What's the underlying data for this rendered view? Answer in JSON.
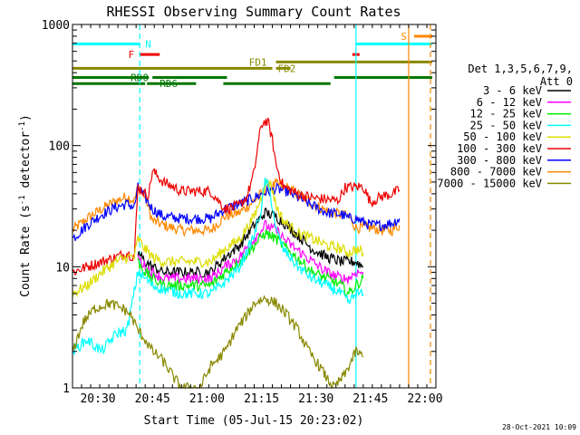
{
  "chart_data": {
    "type": "line",
    "title": "RHESSI Observing Summary Count Rates",
    "xlabel": "Start Time (05-Jul-15 20:23:02)",
    "ylabel_main": "Count Rate (s",
    "ylabel_sup": "-1",
    "ylabel_tail": " detector",
    "ylabel_end": ")",
    "timestamp": "28-Oct-2021 10:09",
    "y_scale": "log",
    "ylim": [
      1,
      1000
    ],
    "xlim_minutes": [
      0,
      100
    ],
    "x_ticks": [
      {
        "t": 7,
        "label": "20:30"
      },
      {
        "t": 22,
        "label": "20:45"
      },
      {
        "t": 37,
        "label": "21:00"
      },
      {
        "t": 52,
        "label": "21:15"
      },
      {
        "t": 67,
        "label": "21:30"
      },
      {
        "t": 82,
        "label": "21:45"
      },
      {
        "t": 97,
        "label": "22:00"
      }
    ],
    "y_ticks": [
      {
        "v": 1,
        "label": "1"
      },
      {
        "v": 10,
        "label": "10"
      },
      {
        "v": 100,
        "label": "100"
      },
      {
        "v": 1000,
        "label": "1000"
      }
    ],
    "legend": {
      "header": [
        "Det 1,3,5,6,7,9,",
        "Att 0"
      ],
      "entries": [
        {
          "label": "3 - 6 keV",
          "color": "#000000"
        },
        {
          "label": "6 - 12 keV",
          "color": "#ff00ff"
        },
        {
          "label": "12 - 25 keV",
          "color": "#00ee00"
        },
        {
          "label": "25 - 50 keV",
          "color": "#00ffff"
        },
        {
          "label": "50 - 100 keV",
          "color": "#dddd00"
        },
        {
          "label": "100 - 300 keV",
          "color": "#ee0000"
        },
        {
          "label": "300 - 800 keV",
          "color": "#0000ff"
        },
        {
          "label": "800 - 7000 keV",
          "color": "#ff8800"
        },
        {
          "label": "7000 - 15000 keV",
          "color": "#888800"
        }
      ]
    },
    "series": [
      {
        "color": "#ff8800",
        "points": [
          [
            0,
            20
          ],
          [
            4,
            25
          ],
          [
            8,
            30
          ],
          [
            12,
            35
          ],
          [
            15,
            38
          ],
          [
            17,
            35
          ],
          [
            18,
            45
          ],
          [
            20,
            38
          ],
          [
            21,
            30
          ],
          [
            22,
            24
          ],
          [
            25,
            22
          ],
          [
            30,
            20
          ],
          [
            35,
            20
          ],
          [
            38,
            20
          ],
          [
            42,
            26
          ],
          [
            46,
            28
          ],
          [
            50,
            35
          ],
          [
            53,
            43
          ],
          [
            56,
            48
          ],
          [
            59,
            45
          ],
          [
            63,
            38
          ],
          [
            66,
            33
          ],
          [
            70,
            29
          ],
          [
            74,
            27
          ],
          [
            76,
            26
          ],
          [
            78,
            21
          ],
          [
            82,
            21
          ],
          [
            85,
            20
          ],
          [
            88,
            20
          ],
          [
            90,
            22
          ]
        ]
      },
      {
        "color": "#0000ff",
        "points": [
          [
            0,
            17
          ],
          [
            4,
            22
          ],
          [
            8,
            27
          ],
          [
            12,
            31
          ],
          [
            15,
            33
          ],
          [
            17,
            31
          ],
          [
            18,
            45
          ],
          [
            20,
            37
          ],
          [
            22,
            30
          ],
          [
            25,
            26
          ],
          [
            30,
            25
          ],
          [
            35,
            25
          ],
          [
            38,
            25
          ],
          [
            42,
            30
          ],
          [
            46,
            33
          ],
          [
            50,
            37
          ],
          [
            53,
            41
          ],
          [
            56,
            44
          ],
          [
            59,
            42
          ],
          [
            63,
            36
          ],
          [
            66,
            32
          ],
          [
            70,
            28
          ],
          [
            74,
            27
          ],
          [
            76,
            25
          ],
          [
            78,
            25
          ],
          [
            82,
            22
          ],
          [
            85,
            22
          ],
          [
            88,
            23
          ],
          [
            90,
            25
          ]
        ]
      },
      {
        "color": "#ee0000",
        "points": [
          [
            0,
            9
          ],
          [
            4,
            10
          ],
          [
            8,
            11
          ],
          [
            12,
            12
          ],
          [
            15,
            13
          ],
          [
            17,
            12
          ],
          [
            18,
            46
          ],
          [
            20,
            40
          ],
          [
            21,
            40
          ],
          [
            22,
            62
          ],
          [
            25,
            50
          ],
          [
            30,
            42
          ],
          [
            35,
            42
          ],
          [
            38,
            42
          ],
          [
            42,
            30
          ],
          [
            46,
            32
          ],
          [
            48,
            38
          ],
          [
            50,
            60
          ],
          [
            51,
            100
          ],
          [
            52,
            148
          ],
          [
            53,
            160
          ],
          [
            54,
            150
          ],
          [
            55,
            110
          ],
          [
            56,
            70
          ],
          [
            58,
            46
          ],
          [
            62,
            40
          ],
          [
            66,
            37
          ],
          [
            70,
            36
          ],
          [
            73,
            35
          ],
          [
            75,
            45
          ],
          [
            80,
            46
          ],
          [
            82,
            34
          ],
          [
            85,
            38
          ],
          [
            88,
            40
          ],
          [
            90,
            43
          ]
        ]
      },
      {
        "color": "#000000",
        "points": [
          [
            18,
            13
          ],
          [
            20,
            11
          ],
          [
            22,
            10
          ],
          [
            25,
            9
          ],
          [
            30,
            9
          ],
          [
            35,
            9
          ],
          [
            38,
            9
          ],
          [
            42,
            12
          ],
          [
            46,
            15
          ],
          [
            50,
            22
          ],
          [
            53,
            28
          ],
          [
            56,
            26
          ],
          [
            59,
            22
          ],
          [
            63,
            17
          ],
          [
            66,
            14
          ],
          [
            70,
            12
          ],
          [
            74,
            11
          ],
          [
            78,
            11
          ],
          [
            80,
            10
          ]
        ]
      },
      {
        "color": "#dddd00",
        "points": [
          [
            0,
            6
          ],
          [
            4,
            7
          ],
          [
            8,
            9
          ],
          [
            12,
            11
          ],
          [
            15,
            12
          ],
          [
            17,
            12
          ],
          [
            18,
            17
          ],
          [
            20,
            14
          ],
          [
            22,
            12
          ],
          [
            25,
            11
          ],
          [
            30,
            11
          ],
          [
            35,
            11
          ],
          [
            38,
            11
          ],
          [
            42,
            14
          ],
          [
            46,
            17
          ],
          [
            50,
            26
          ],
          [
            52,
            38
          ],
          [
            53,
            48
          ],
          [
            54,
            52
          ],
          [
            55,
            44
          ],
          [
            56,
            32
          ],
          [
            58,
            24
          ],
          [
            62,
            19
          ],
          [
            66,
            17
          ],
          [
            70,
            15
          ],
          [
            74,
            14
          ],
          [
            76,
            13
          ],
          [
            78,
            14
          ],
          [
            80,
            13
          ]
        ]
      },
      {
        "color": "#ff00ff",
        "points": [
          [
            18,
            12
          ],
          [
            20,
            10
          ],
          [
            22,
            9
          ],
          [
            25,
            8
          ],
          [
            30,
            8
          ],
          [
            35,
            8
          ],
          [
            38,
            8
          ],
          [
            42,
            10
          ],
          [
            46,
            12
          ],
          [
            50,
            17
          ],
          [
            53,
            22
          ],
          [
            56,
            20
          ],
          [
            59,
            16
          ],
          [
            63,
            13
          ],
          [
            66,
            11
          ],
          [
            70,
            9
          ],
          [
            74,
            8
          ],
          [
            76,
            8
          ],
          [
            78,
            9
          ],
          [
            80,
            9
          ]
        ]
      },
      {
        "color": "#00ee00",
        "points": [
          [
            18,
            11
          ],
          [
            20,
            9
          ],
          [
            22,
            8
          ],
          [
            25,
            7
          ],
          [
            30,
            7
          ],
          [
            35,
            7
          ],
          [
            38,
            7
          ],
          [
            42,
            9
          ],
          [
            46,
            11
          ],
          [
            50,
            15
          ],
          [
            53,
            19
          ],
          [
            56,
            17
          ],
          [
            59,
            14
          ],
          [
            63,
            11
          ],
          [
            66,
            9
          ],
          [
            70,
            8
          ],
          [
            74,
            7
          ],
          [
            76,
            6
          ],
          [
            78,
            7
          ],
          [
            80,
            8
          ]
        ]
      },
      {
        "color": "#00ffff",
        "points": [
          [
            0,
            2
          ],
          [
            4,
            2.5
          ],
          [
            8,
            2
          ],
          [
            12,
            2.8
          ],
          [
            15,
            3
          ],
          [
            18,
            9
          ],
          [
            20,
            8
          ],
          [
            22,
            7
          ],
          [
            25,
            6.5
          ],
          [
            30,
            6
          ],
          [
            35,
            6
          ],
          [
            38,
            6
          ],
          [
            42,
            7.5
          ],
          [
            46,
            10
          ],
          [
            50,
            18
          ],
          [
            52,
            30
          ],
          [
            53,
            52
          ],
          [
            54,
            45
          ],
          [
            55,
            32
          ],
          [
            56,
            20
          ],
          [
            58,
            14
          ],
          [
            62,
            10
          ],
          [
            66,
            8
          ],
          [
            70,
            7
          ],
          [
            74,
            6
          ],
          [
            76,
            5
          ],
          [
            78,
            6
          ],
          [
            80,
            6
          ]
        ]
      },
      {
        "color": "#888800",
        "points": [
          [
            0,
            2
          ],
          [
            3,
            3.5
          ],
          [
            6,
            4.5
          ],
          [
            10,
            5
          ],
          [
            14,
            4.5
          ],
          [
            16,
            4
          ],
          [
            18,
            3
          ],
          [
            20,
            2.5
          ],
          [
            22,
            2
          ],
          [
            24,
            1.8
          ],
          [
            26,
            1.5
          ],
          [
            28,
            1.2
          ],
          [
            30,
            1
          ],
          [
            35,
            1
          ],
          [
            38,
            1.5
          ],
          [
            42,
            2
          ],
          [
            45,
            3
          ],
          [
            48,
            4
          ],
          [
            50,
            5
          ],
          [
            53,
            5.5
          ],
          [
            56,
            5
          ],
          [
            59,
            4
          ],
          [
            62,
            3
          ],
          [
            65,
            2
          ],
          [
            68,
            1.5
          ],
          [
            70,
            1.2
          ],
          [
            72,
            1
          ],
          [
            75,
            1.3
          ],
          [
            78,
            2
          ],
          [
            80,
            1.8
          ]
        ]
      }
    ],
    "bars": [
      {
        "label": "N",
        "color": "#00ffff",
        "y": 690,
        "segments": [
          [
            0,
            18.5
          ]
        ],
        "label_t": 19.5,
        "label_side": "right"
      },
      {
        "label": "F",
        "color": "#ee0000",
        "y": 565,
        "segments": [
          [
            18.5,
            24
          ]
        ],
        "label_t": 17.5,
        "label_side": "left"
      },
      {
        "label": "",
        "color": "#ee0000",
        "y": 565,
        "segments": [
          [
            77,
            79
          ]
        ],
        "label_t": 77,
        "label_side": "right"
      },
      {
        "label": "",
        "color": "#00ffff",
        "y": 690,
        "segments": [
          [
            78,
            99
          ]
        ],
        "label_t": 78,
        "label_side": "right"
      },
      {
        "label": "S",
        "color": "#ff8800",
        "y": 800,
        "segments": [
          [
            94,
            99
          ]
        ],
        "label_t": 92.5,
        "label_side": "left"
      },
      {
        "label": "FD1",
        "color": "#888800",
        "y": 490,
        "segments": [
          [
            56,
            99
          ]
        ],
        "label_t": 54,
        "label_side": "left"
      },
      {
        "label": "",
        "color": "#888800",
        "y": 435,
        "segments": [
          [
            0,
            55
          ]
        ],
        "label_t": 0,
        "label_side": "right"
      },
      {
        "label": "FD2",
        "color": "#888800",
        "y": 435,
        "segments": [
          [
            56,
            60
          ]
        ],
        "label_t": 56,
        "label_side": "right"
      },
      {
        "label": "RD0",
        "color": "#007700",
        "y": 365,
        "segments": [
          [
            0,
            21
          ],
          [
            22,
            42.5
          ],
          [
            72,
            99
          ]
        ],
        "label_t": 15.5,
        "label_side": "right"
      },
      {
        "label": "RD6",
        "color": "#007700",
        "y": 325,
        "segments": [
          [
            0,
            20
          ],
          [
            20.5,
            34
          ],
          [
            41.5,
            71
          ]
        ],
        "label_t": 23.5,
        "label_side": "right"
      }
    ],
    "vlines": [
      {
        "t": 18.5,
        "color": "#00ffff",
        "style": "dashed"
      },
      {
        "t": 78,
        "color": "#00ffff",
        "style": "solid"
      },
      {
        "t": 92.5,
        "color": "#ff8800",
        "style": "solid"
      },
      {
        "t": 98.5,
        "color": "#ff8800",
        "style": "dashed"
      }
    ]
  }
}
